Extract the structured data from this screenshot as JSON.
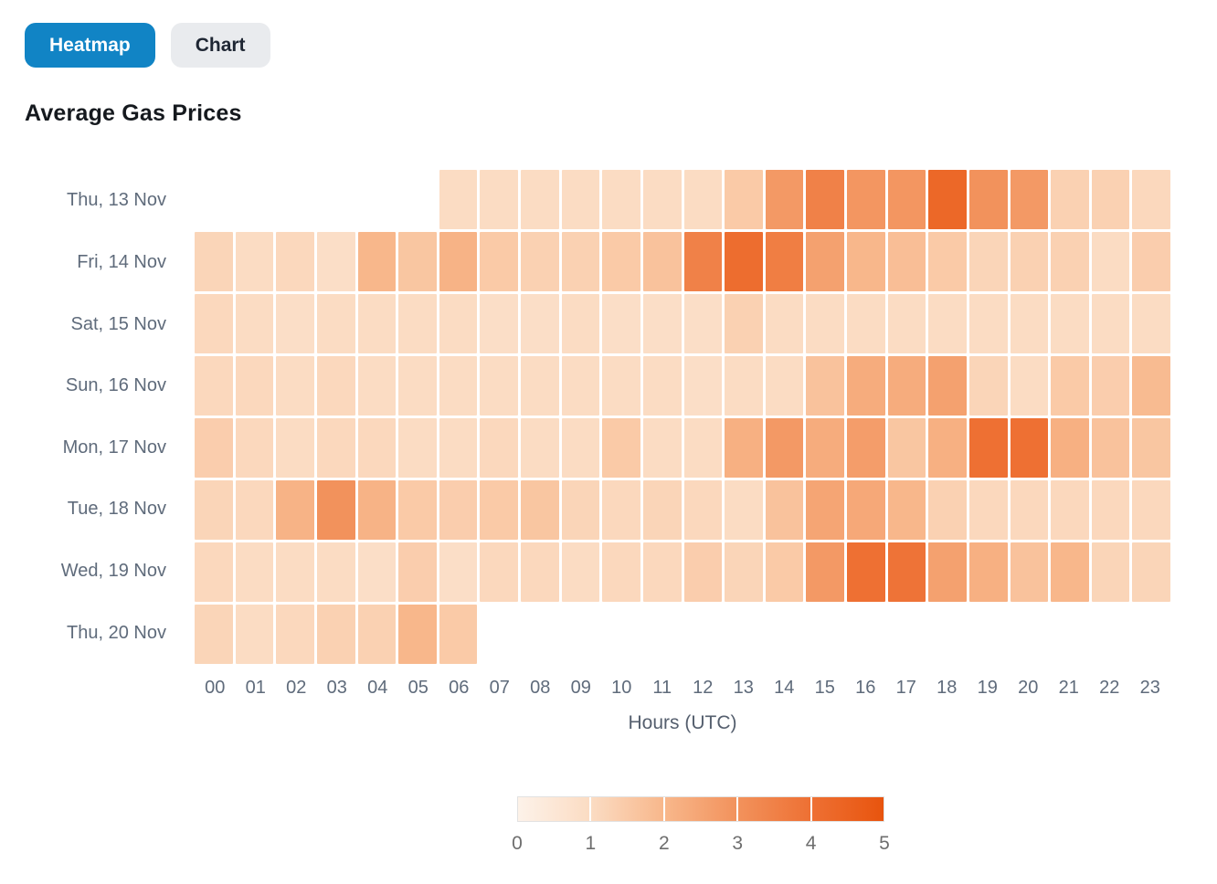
{
  "view_toggle": {
    "heatmap_label": "Heatmap",
    "chart_label": "Chart",
    "active": "Heatmap"
  },
  "title": "Average Gas Prices",
  "chart_data": {
    "type": "heatmap",
    "title": "Average Gas Prices",
    "xlabel": "Hours (UTC)",
    "x_categories": [
      "00",
      "01",
      "02",
      "03",
      "04",
      "05",
      "06",
      "07",
      "08",
      "09",
      "10",
      "11",
      "12",
      "13",
      "14",
      "15",
      "16",
      "17",
      "18",
      "19",
      "20",
      "21",
      "22",
      "23"
    ],
    "value_range": [
      0,
      5
    ],
    "grid": "white gaps between cells",
    "legend_position": "bottom-center",
    "rows": [
      {
        "label": "Thu, 13 Nov",
        "values": [
          null,
          null,
          null,
          null,
          null,
          null,
          1.0,
          1.0,
          1.0,
          1.0,
          1.0,
          1.0,
          1.0,
          1.5,
          2.8,
          3.5,
          2.9,
          2.9,
          4.3,
          3.0,
          2.8,
          1.3,
          1.3,
          1.1
        ]
      },
      {
        "label": "Fri, 14 Nov",
        "values": [
          1.2,
          1.0,
          1.1,
          0.9,
          2.0,
          1.6,
          2.1,
          1.5,
          1.3,
          1.3,
          1.5,
          1.7,
          3.5,
          4.1,
          3.6,
          2.6,
          2.0,
          1.8,
          1.5,
          1.2,
          1.3,
          1.3,
          1.0,
          1.4
        ]
      },
      {
        "label": "Sat, 15 Nov",
        "values": [
          1.1,
          1.0,
          0.9,
          1.0,
          1.0,
          1.0,
          1.0,
          0.9,
          0.9,
          1.0,
          0.9,
          0.9,
          0.9,
          1.3,
          1.0,
          1.0,
          1.0,
          1.0,
          1.0,
          1.0,
          1.0,
          1.0,
          1.0,
          1.0
        ]
      },
      {
        "label": "Sun, 16 Nov",
        "values": [
          1.1,
          1.1,
          1.0,
          1.1,
          1.0,
          1.0,
          1.0,
          1.0,
          1.0,
          1.0,
          1.0,
          1.0,
          0.9,
          1.0,
          1.0,
          1.7,
          2.3,
          2.3,
          2.6,
          1.2,
          1.0,
          1.5,
          1.4,
          1.9
        ]
      },
      {
        "label": "Mon, 17 Nov",
        "values": [
          1.4,
          1.1,
          1.0,
          1.1,
          1.1,
          1.0,
          1.0,
          1.1,
          1.0,
          1.0,
          1.5,
          1.0,
          1.0,
          2.2,
          2.8,
          2.3,
          2.7,
          1.6,
          2.2,
          4.0,
          4.0,
          2.2,
          1.7,
          1.6
        ]
      },
      {
        "label": "Tue, 18 Nov",
        "values": [
          1.2,
          1.1,
          2.1,
          3.0,
          2.1,
          1.5,
          1.4,
          1.5,
          1.6,
          1.2,
          1.1,
          1.2,
          1.1,
          1.0,
          1.7,
          2.5,
          2.4,
          2.0,
          1.3,
          1.1,
          1.1,
          1.1,
          1.1,
          1.1
        ]
      },
      {
        "label": "Wed, 19 Nov",
        "values": [
          1.1,
          1.0,
          1.0,
          1.0,
          0.9,
          1.4,
          0.9,
          1.1,
          1.1,
          1.0,
          1.1,
          1.1,
          1.4,
          1.2,
          1.5,
          2.8,
          4.0,
          3.9,
          2.6,
          2.2,
          1.7,
          2.0,
          1.2,
          1.2
        ]
      },
      {
        "label": "Thu, 20 Nov",
        "values": [
          1.2,
          1.0,
          1.1,
          1.3,
          1.3,
          2.0,
          1.5,
          null,
          null,
          null,
          null,
          null,
          null,
          null,
          null,
          null,
          null,
          null,
          null,
          null,
          null,
          null,
          null,
          null
        ]
      }
    ],
    "colorbar": {
      "min": 0,
      "max": 5,
      "ticks": [
        "0",
        "1",
        "2",
        "3",
        "4",
        "5"
      ],
      "gradient_stops": [
        "#fdf2e9",
        "#fbdcc3",
        "#f8b78b",
        "#f2925c",
        "#ee7033",
        "#e8540e"
      ]
    }
  },
  "colors": {
    "active_button_bg": "#1184c5",
    "active_button_text": "#ffffff",
    "inactive_button_bg": "#e9ebee",
    "inactive_button_text": "#1e2633",
    "axis_label": "#5f6b7b",
    "title_text": "#15191e"
  }
}
